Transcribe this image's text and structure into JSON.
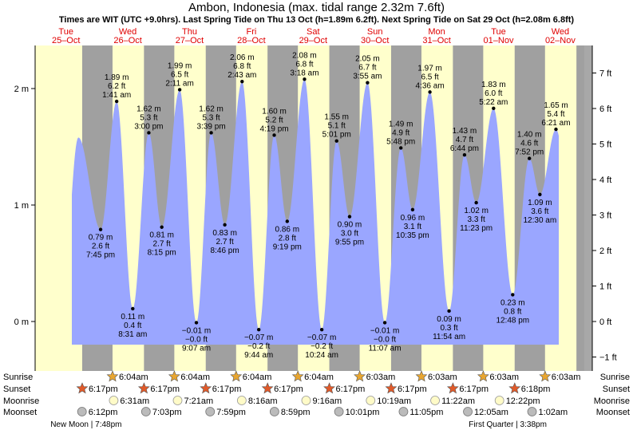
{
  "title": "Ambon, Indonesia (max. tidal range 2.32m 7.6ft)",
  "subtitle": "Times are WIT (UTC +9.0hrs). Last Spring Tide on Thu 13 Oct (h=1.89m 6.2ft). Next Spring Tide on Sat 29 Oct (h=2.08m 6.8ft)",
  "chart_data": {
    "type": "area",
    "days": [
      {
        "dow": "Tue",
        "date": "25–Oct"
      },
      {
        "dow": "Wed",
        "date": "26–Oct"
      },
      {
        "dow": "Thu",
        "date": "27–Oct"
      },
      {
        "dow": "Fri",
        "date": "28–Oct"
      },
      {
        "dow": "Sat",
        "date": "29–Oct"
      },
      {
        "dow": "Sun",
        "date": "30–Oct"
      },
      {
        "dow": "Mon",
        "date": "31–Oct"
      },
      {
        "dow": "Tue",
        "date": "01–Nov"
      },
      {
        "dow": "Wed",
        "date": "02–Nov"
      }
    ],
    "ylim_m": [
      -0.33,
      2.32
    ],
    "y_ticks_m": [
      "0 m",
      "1 m",
      "2 m"
    ],
    "y_ticks_ft": [
      "−1 ft",
      "0 ft",
      "1 ft",
      "2 ft",
      "3 ft",
      "4 ft",
      "5 ft",
      "6 ft",
      "7 ft"
    ],
    "tides": [
      {
        "day": 0.7,
        "time": "",
        "m": 1.58,
        "labeled": false
      },
      {
        "day": 1.06,
        "time": "7:45 pm",
        "m": 0.79,
        "m_label": "0.79 m",
        "ft_label": "2.6 ft",
        "type": "low"
      },
      {
        "day": 1.32,
        "time": "1:41 am",
        "m": 1.89,
        "m_label": "1.89 m",
        "ft_label": "6.2 ft",
        "type": "high"
      },
      {
        "day": 1.58,
        "time": "8:31 am",
        "m": 0.11,
        "m_label": "0.11 m",
        "ft_label": "0.4 ft",
        "type": "low"
      },
      {
        "day": 1.84,
        "time": "3:00 pm",
        "m": 1.62,
        "m_label": "1.62 m",
        "ft_label": "5.3 ft",
        "type": "high"
      },
      {
        "day": 2.05,
        "time": "8:15 pm",
        "m": 0.81,
        "m_label": "0.81 m",
        "ft_label": "2.7 ft",
        "type": "low"
      },
      {
        "day": 2.34,
        "time": "2:11 am",
        "m": 1.99,
        "m_label": "1.99 m",
        "ft_label": "6.5 ft",
        "type": "high"
      },
      {
        "day": 2.61,
        "time": "9:07 am",
        "m": -0.01,
        "m_label": "−0.01 m",
        "ft_label": "−0.0 ft",
        "type": "low"
      },
      {
        "day": 2.85,
        "time": "3:39 pm",
        "m": 1.62,
        "m_label": "1.62 m",
        "ft_label": "5.3 ft",
        "type": "high"
      },
      {
        "day": 3.07,
        "time": "8:46 pm",
        "m": 0.83,
        "m_label": "0.83 m",
        "ft_label": "2.7 ft",
        "type": "low"
      },
      {
        "day": 3.35,
        "time": "2:43 am",
        "m": 2.06,
        "m_label": "2.06 m",
        "ft_label": "6.8 ft",
        "type": "high"
      },
      {
        "day": 3.62,
        "time": "9:44 am",
        "m": -0.07,
        "m_label": "−0.07 m",
        "ft_label": "−0.2 ft",
        "type": "low"
      },
      {
        "day": 3.87,
        "time": "4:19 pm",
        "m": 1.6,
        "m_label": "1.60 m",
        "ft_label": "5.2 ft",
        "type": "high"
      },
      {
        "day": 4.08,
        "time": "9:19 pm",
        "m": 0.86,
        "m_label": "0.86 m",
        "ft_label": "2.8 ft",
        "type": "low"
      },
      {
        "day": 4.36,
        "time": "3:18 am",
        "m": 2.08,
        "m_label": "2.08 m",
        "ft_label": "6.8 ft",
        "type": "high"
      },
      {
        "day": 4.64,
        "time": "10:24 am",
        "m": -0.07,
        "m_label": "−0.07 m",
        "ft_label": "−0.2 ft",
        "type": "low"
      },
      {
        "day": 4.88,
        "time": "5:01 pm",
        "m": 1.55,
        "m_label": "1.55 m",
        "ft_label": "5.1 ft",
        "type": "high"
      },
      {
        "day": 5.09,
        "time": "9:55 pm",
        "m": 0.9,
        "m_label": "0.90 m",
        "ft_label": "3.0 ft",
        "type": "low"
      },
      {
        "day": 5.38,
        "time": "3:55 am",
        "m": 2.05,
        "m_label": "2.05 m",
        "ft_label": "6.7 ft",
        "type": "high"
      },
      {
        "day": 5.66,
        "time": "11:07 am",
        "m": -0.01,
        "m_label": "−0.01 m",
        "ft_label": "−0.0 ft",
        "type": "low"
      },
      {
        "day": 5.92,
        "time": "5:48 pm",
        "m": 1.49,
        "m_label": "1.49 m",
        "ft_label": "4.9 ft",
        "type": "high"
      },
      {
        "day": 6.11,
        "time": "10:35 pm",
        "m": 0.96,
        "m_label": "0.96 m",
        "ft_label": "3.1 ft",
        "type": "low"
      },
      {
        "day": 6.39,
        "time": "4:36 am",
        "m": 1.97,
        "m_label": "1.97 m",
        "ft_label": "6.5 ft",
        "type": "high"
      },
      {
        "day": 6.7,
        "time": "11:54 am",
        "m": 0.09,
        "m_label": "0.09 m",
        "ft_label": "0.3 ft",
        "type": "low"
      },
      {
        "day": 6.95,
        "time": "6:44 pm",
        "m": 1.43,
        "m_label": "1.43 m",
        "ft_label": "4.7 ft",
        "type": "high"
      },
      {
        "day": 7.14,
        "time": "11:23 pm",
        "m": 1.02,
        "m_label": "1.02 m",
        "ft_label": "3.3 ft",
        "type": "low"
      },
      {
        "day": 7.42,
        "time": "5:22 am",
        "m": 1.83,
        "m_label": "1.83 m",
        "ft_label": "6.0 ft",
        "type": "high"
      },
      {
        "day": 7.73,
        "time": "12:48 pm",
        "m": 0.23,
        "m_label": "0.23 m",
        "ft_label": "0.8 ft",
        "type": "low"
      },
      {
        "day": 8.0,
        "time": "7:52 pm",
        "m": 1.4,
        "m_label": "1.40 m",
        "ft_label": "4.6 ft",
        "type": "high"
      },
      {
        "day": 8.17,
        "time": "12:30 am",
        "m": 1.09,
        "m_label": "1.09 m",
        "ft_label": "3.6 ft",
        "type": "low"
      },
      {
        "day": 8.43,
        "time": "6:21 am",
        "m": 1.65,
        "m_label": "1.65 m",
        "ft_label": "5.4 ft",
        "type": "high"
      }
    ],
    "day_start_hour": 6.07,
    "night_start_hour": 18.28,
    "colors": {
      "day": "#ffffcc",
      "night": "#a0a0a0",
      "water": "#9aa6ff",
      "date_text": "#e00000",
      "sun_marker": "#e8a630",
      "sunset_marker": "#e05a2a",
      "moonrise_marker": "#fffbc8",
      "moonset_marker": "#bbbbbb"
    }
  },
  "astro": {
    "row_labels": [
      "Sunrise",
      "Sunset",
      "Moonrise",
      "Moonset"
    ],
    "sunrise": [
      {
        "day": 1,
        "time": "6:04am"
      },
      {
        "day": 2,
        "time": "6:04am"
      },
      {
        "day": 3,
        "time": "6:04am"
      },
      {
        "day": 4,
        "time": "6:04am"
      },
      {
        "day": 5,
        "time": "6:03am"
      },
      {
        "day": 6,
        "time": "6:03am"
      },
      {
        "day": 7,
        "time": "6:03am"
      },
      {
        "day": 8,
        "time": "6:03am"
      }
    ],
    "sunset": [
      {
        "day": 0,
        "time": "6:17pm"
      },
      {
        "day": 1,
        "time": "6:17pm"
      },
      {
        "day": 2,
        "time": "6:17pm"
      },
      {
        "day": 3,
        "time": "6:17pm"
      },
      {
        "day": 4,
        "time": "6:17pm"
      },
      {
        "day": 5,
        "time": "6:17pm"
      },
      {
        "day": 6,
        "time": "6:17pm"
      },
      {
        "day": 7,
        "time": "6:18pm"
      }
    ],
    "moonrise": [
      {
        "day": 1,
        "h": 6.52,
        "time": "6:31am"
      },
      {
        "day": 2,
        "h": 7.35,
        "time": "7:21am"
      },
      {
        "day": 3,
        "h": 8.27,
        "time": "8:16am"
      },
      {
        "day": 4,
        "h": 9.27,
        "time": "9:16am"
      },
      {
        "day": 5,
        "h": 10.32,
        "time": "10:19am"
      },
      {
        "day": 6,
        "h": 11.37,
        "time": "11:22am"
      },
      {
        "day": 7,
        "h": 12.37,
        "time": "12:22pm"
      }
    ],
    "moonset": [
      {
        "day": 0,
        "h": 18.2,
        "time": "6:12pm"
      },
      {
        "day": 1,
        "h": 19.05,
        "time": "7:03pm"
      },
      {
        "day": 2,
        "h": 19.98,
        "time": "7:59pm"
      },
      {
        "day": 3,
        "h": 20.98,
        "time": "8:59pm"
      },
      {
        "day": 4,
        "h": 22.02,
        "time": "10:01pm"
      },
      {
        "day": 5,
        "h": 23.08,
        "time": "11:05pm"
      },
      {
        "day": 7,
        "h": 0.08,
        "time": "12:05am"
      },
      {
        "day": 8,
        "h": 1.03,
        "time": "1:02am"
      }
    ],
    "moon_phases": [
      {
        "day": 0,
        "h": 19.8,
        "text": "New Moon | 7:48pm"
      },
      {
        "day": 7,
        "h": 15.6,
        "text": "First Quarter | 3:38pm"
      }
    ]
  }
}
